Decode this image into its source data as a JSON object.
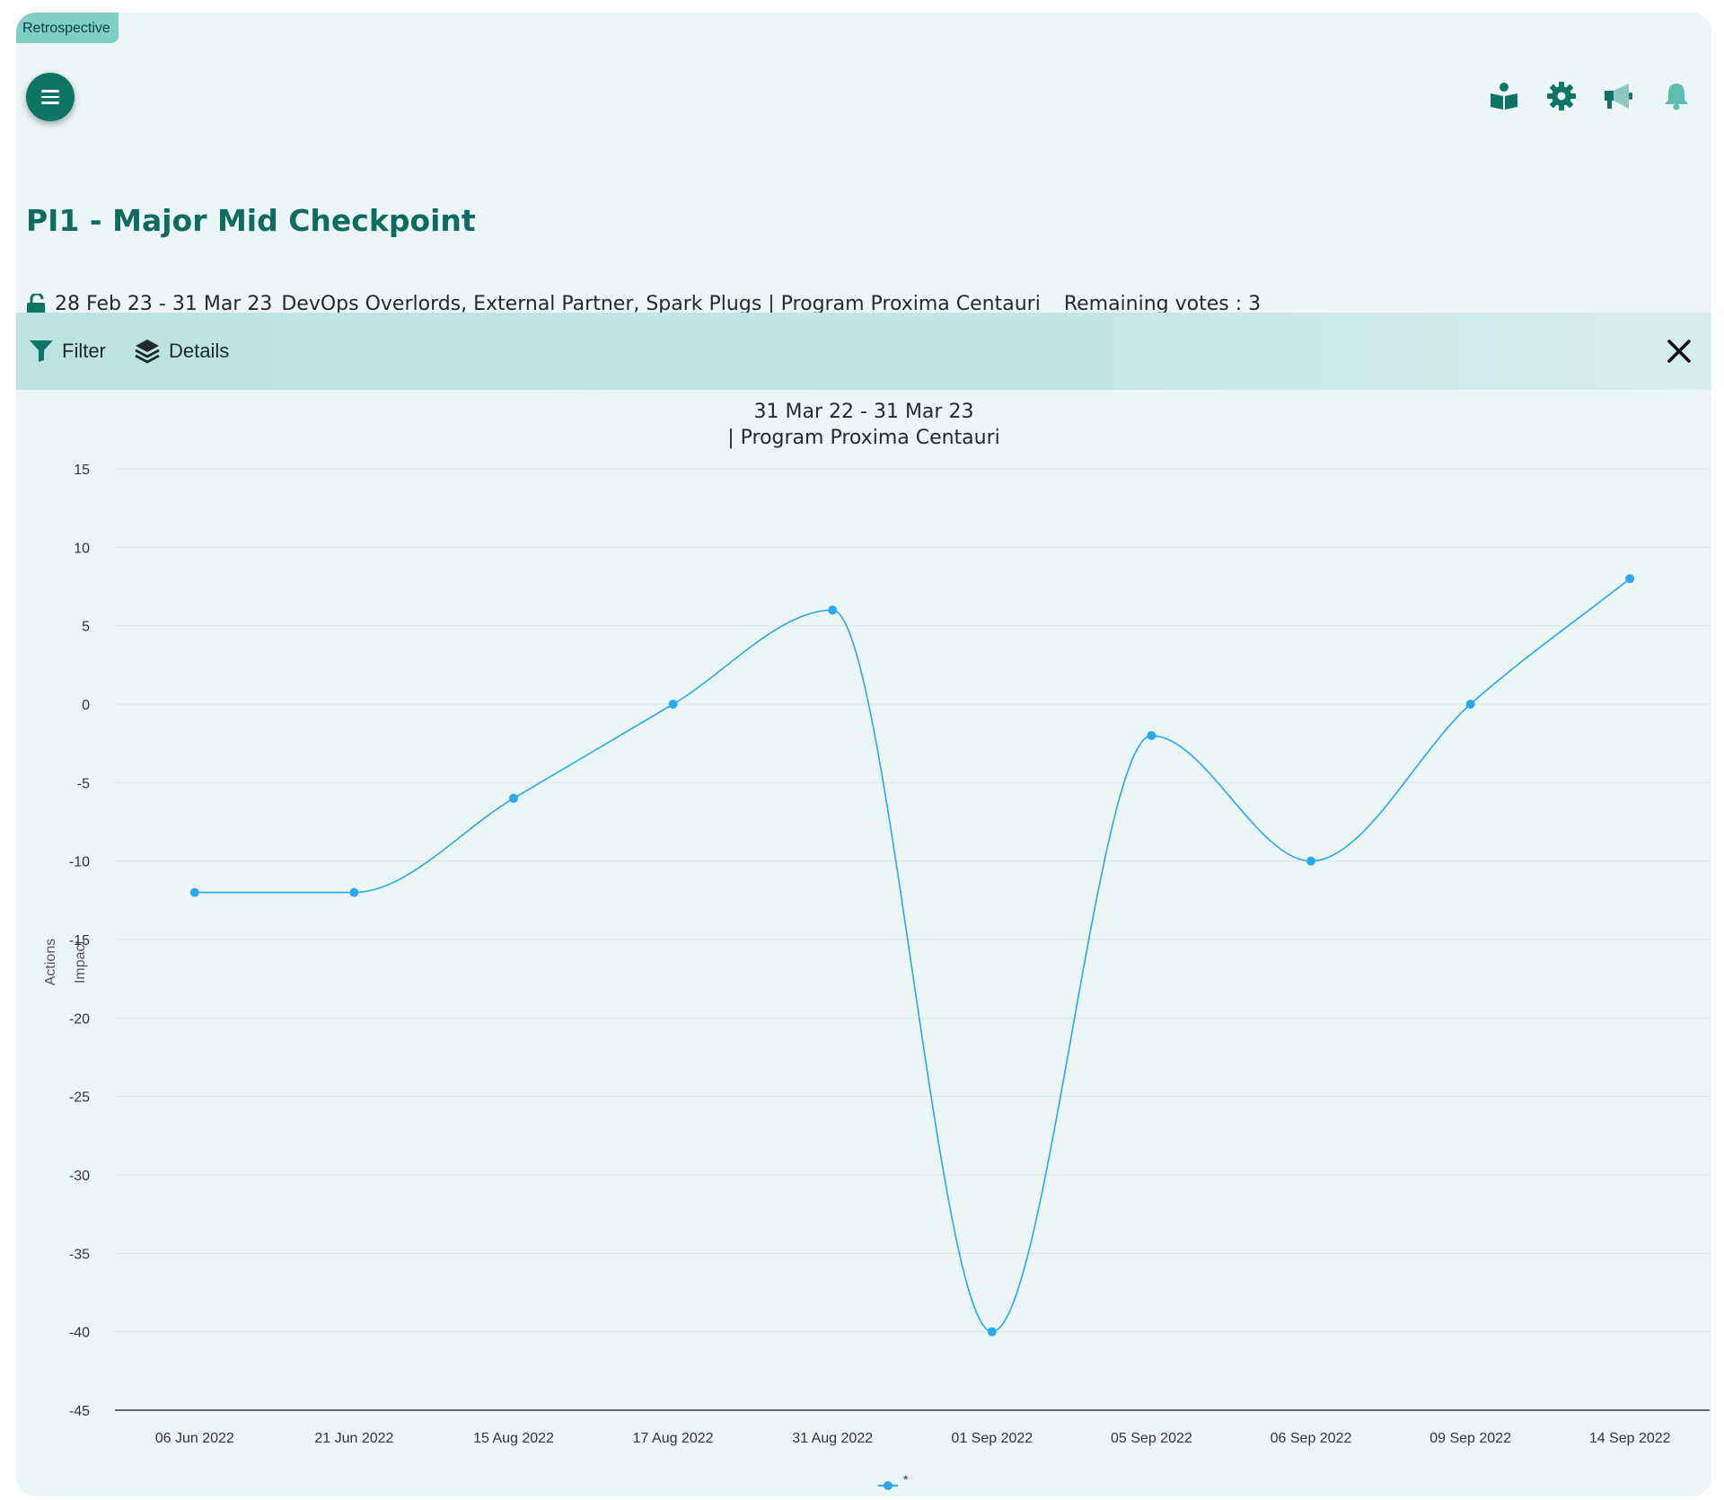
{
  "app": {
    "tag": "Retrospective"
  },
  "header": {
    "menu_icon": "hamburger-menu-icon",
    "icons": [
      "book-reader-icon",
      "gear-icon",
      "megaphone-icon",
      "bell-icon"
    ]
  },
  "page": {
    "title": "PI1 - Major Mid Checkpoint",
    "date_range": "28 Feb 23 - 31 Mar 23",
    "teams_program": "DevOps Overlords, External Partner, Spark Plugs | Program Proxima Centauri",
    "remaining_votes": "Remaining votes : 3"
  },
  "toolbar": {
    "filter_label": "Filter",
    "details_label": "Details"
  },
  "colors": {
    "accent": "#0d7466",
    "series": "#2aa8f0"
  },
  "chart_data": {
    "type": "line",
    "title": "31 Mar 22 - 31 Mar 23",
    "subtitle": "| Program Proxima Centauri",
    "ylabels": [
      "Actions",
      "Impact"
    ],
    "categories": [
      "06 Jun 2022",
      "21 Jun 2022",
      "15 Aug 2022",
      "17 Aug 2022",
      "31 Aug 2022",
      "01 Sep 2022",
      "05 Sep 2022",
      "06 Sep 2022",
      "09 Sep 2022",
      "14 Sep 2022"
    ],
    "series": [
      {
        "name": "*",
        "values": [
          -12,
          -12,
          -6,
          0,
          6,
          -40,
          -2,
          -10,
          0,
          8
        ]
      }
    ],
    "ylim": [
      -45,
      15
    ],
    "yticks": [
      15,
      10,
      5,
      0,
      -5,
      -10,
      -15,
      -20,
      -25,
      -30,
      -35,
      -40,
      -45
    ],
    "grid": true,
    "legend": "bottom-center",
    "smooth": true
  }
}
